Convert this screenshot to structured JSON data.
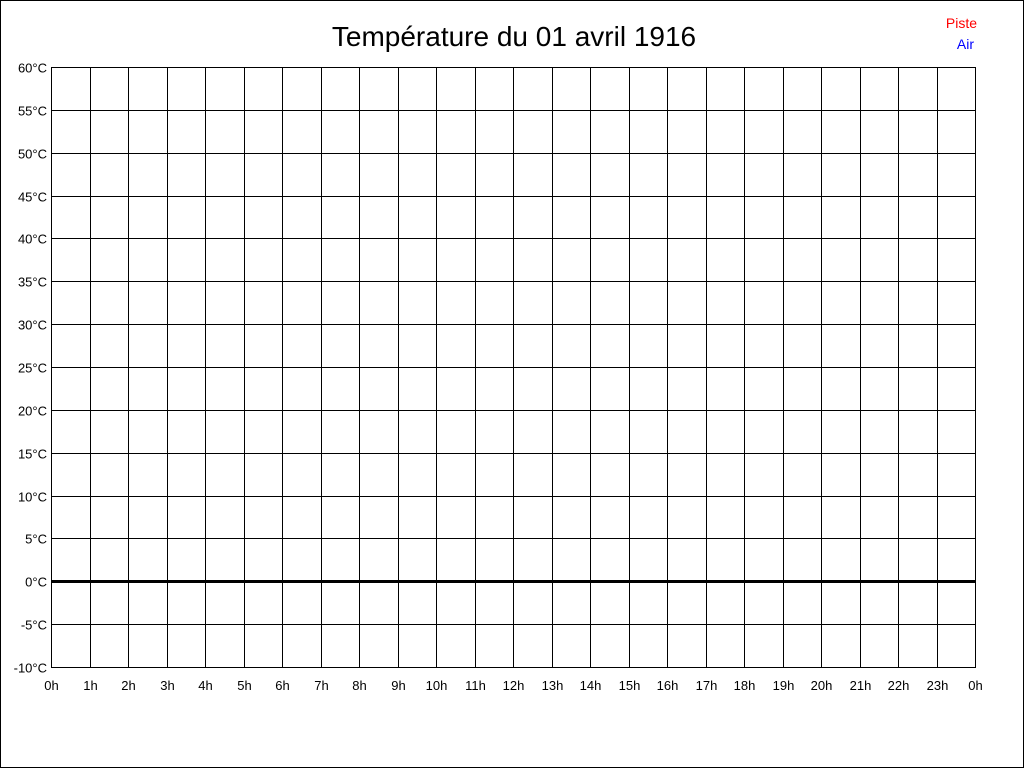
{
  "chart_data": {
    "type": "line",
    "title": "Température du 01 avril 1916",
    "xlabel": "",
    "ylabel": "",
    "x_ticks": [
      "0h",
      "1h",
      "2h",
      "3h",
      "4h",
      "5h",
      "6h",
      "7h",
      "8h",
      "9h",
      "10h",
      "11h",
      "12h",
      "13h",
      "14h",
      "15h",
      "16h",
      "17h",
      "18h",
      "19h",
      "20h",
      "21h",
      "22h",
      "23h",
      "0h"
    ],
    "xlim": [
      0,
      24
    ],
    "ylim": [
      -10,
      60
    ],
    "y_step": 5,
    "y_unit": "°C",
    "grid": true,
    "legend_position": "top-right",
    "series": [
      {
        "name": "Piste",
        "color": "#ff0000",
        "values": []
      },
      {
        "name": "Air",
        "color": "#0000ff",
        "values": []
      }
    ]
  }
}
